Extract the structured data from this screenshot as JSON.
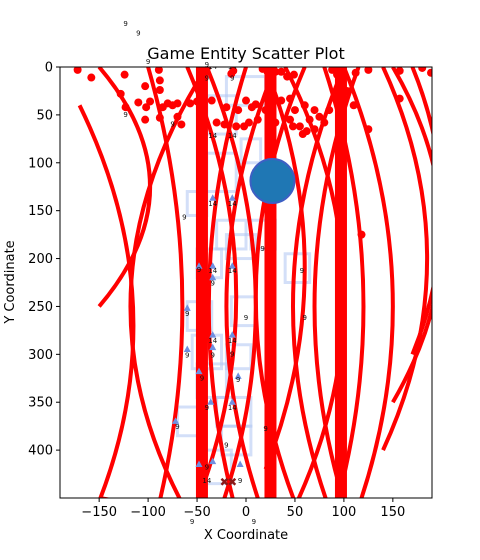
{
  "chart_data": {
    "type": "scatter",
    "title": "Game Entity Scatter Plot",
    "xlabel": "X Coordinate",
    "ylabel": "Y Coordinate",
    "xlim": [
      -190,
      190
    ],
    "ylim": [
      450,
      0
    ],
    "x_ticks": [
      -150,
      -100,
      -50,
      0,
      50,
      100,
      150
    ],
    "y_ticks": [
      0,
      50,
      100,
      150,
      200,
      250,
      300,
      350,
      400
    ],
    "grid": false,
    "colors": {
      "red": "#ff0000",
      "blue_fill": "#1f77b4",
      "blue_edge": "#3d5fc4",
      "light_blue": "#aec4f2",
      "dark_marker": "#8b1a1a"
    },
    "vertical_bars": [
      {
        "x": -45
      },
      {
        "x": 25
      },
      {
        "x": 97
      }
    ],
    "red_points": [
      {
        "x": -172,
        "y": 3
      },
      {
        "x": -158,
        "y": 11
      },
      {
        "x": -124,
        "y": 8
      },
      {
        "x": -128,
        "y": 28
      },
      {
        "x": -123,
        "y": 42
      },
      {
        "x": -110,
        "y": 37
      },
      {
        "x": -103,
        "y": 20
      },
      {
        "x": -102,
        "y": 42
      },
      {
        "x": -98,
        "y": 36
      },
      {
        "x": -89,
        "y": 3
      },
      {
        "x": -88,
        "y": 14
      },
      {
        "x": -88,
        "y": 24
      },
      {
        "x": -85,
        "y": 42
      },
      {
        "x": -80,
        "y": 38
      },
      {
        "x": -75,
        "y": 40
      },
      {
        "x": -70,
        "y": 38
      },
      {
        "x": -66,
        "y": 60
      },
      {
        "x": -57,
        "y": 38
      },
      {
        "x": -50,
        "y": 36
      },
      {
        "x": -47,
        "y": 2
      },
      {
        "x": -40,
        "y": 1
      },
      {
        "x": -35,
        "y": 35
      },
      {
        "x": -30,
        "y": 58
      },
      {
        "x": -22,
        "y": 60
      },
      {
        "x": -15,
        "y": 7
      },
      {
        "x": -13,
        "y": 4
      },
      {
        "x": -10,
        "y": 62
      },
      {
        "x": -2,
        "y": 62
      },
      {
        "x": 3,
        "y": 58
      },
      {
        "x": -103,
        "y": 55
      },
      {
        "x": -88,
        "y": 53
      },
      {
        "x": -70,
        "y": 52
      },
      {
        "x": -8,
        "y": 45
      },
      {
        "x": 0,
        "y": 35
      },
      {
        "x": 6,
        "y": 42
      },
      {
        "x": 10,
        "y": 39
      },
      {
        "x": 12,
        "y": 55
      },
      {
        "x": 17,
        "y": 2
      },
      {
        "x": 22,
        "y": 5
      },
      {
        "x": 27,
        "y": 2
      },
      {
        "x": 30,
        "y": 5
      },
      {
        "x": 36,
        "y": 5
      },
      {
        "x": 36,
        "y": 35
      },
      {
        "x": 42,
        "y": 10
      },
      {
        "x": 45,
        "y": 33
      },
      {
        "x": 49,
        "y": 8
      },
      {
        "x": 50,
        "y": 45
      },
      {
        "x": 45,
        "y": 55
      },
      {
        "x": 48,
        "y": 62
      },
      {
        "x": 55,
        "y": 62
      },
      {
        "x": 58,
        "y": 70
      },
      {
        "x": 62,
        "y": 67
      },
      {
        "x": 65,
        "y": 55
      },
      {
        "x": 60,
        "y": 40
      },
      {
        "x": 70,
        "y": 65
      },
      {
        "x": 75,
        "y": 52
      },
      {
        "x": 80,
        "y": 58
      },
      {
        "x": 85,
        "y": 45
      },
      {
        "x": 88,
        "y": 3
      },
      {
        "x": 93,
        "y": 8
      },
      {
        "x": 97,
        "y": 13
      },
      {
        "x": 103,
        "y": 25
      },
      {
        "x": 112,
        "y": 6
      },
      {
        "x": 125,
        "y": 3
      },
      {
        "x": 125,
        "y": 65
      },
      {
        "x": 110,
        "y": 40
      },
      {
        "x": 118,
        "y": 175
      },
      {
        "x": 157,
        "y": 4
      },
      {
        "x": 157,
        "y": 33
      },
      {
        "x": 180,
        "y": 1
      },
      {
        "x": 189,
        "y": 6
      },
      {
        "x": 20,
        "y": 45
      },
      {
        "x": 70,
        "y": 45
      },
      {
        "x": 30,
        "y": 58
      },
      {
        "x": -20,
        "y": 42
      }
    ],
    "big_circle": {
      "x": 27,
      "y": 119,
      "r": 22
    },
    "triangles": [
      {
        "x": -34,
        "y": 137
      },
      {
        "x": -14,
        "y": 137
      },
      {
        "x": -34,
        "y": 208
      },
      {
        "x": -14,
        "y": 208
      },
      {
        "x": -48,
        "y": 208
      },
      {
        "x": -34,
        "y": 220
      },
      {
        "x": -60,
        "y": 252
      },
      {
        "x": -34,
        "y": 280
      },
      {
        "x": -14,
        "y": 280
      },
      {
        "x": -34,
        "y": 293
      },
      {
        "x": -60,
        "y": 295
      },
      {
        "x": -48,
        "y": 318
      },
      {
        "x": -8,
        "y": 323
      },
      {
        "x": -36,
        "y": 350
      },
      {
        "x": -14,
        "y": 350
      },
      {
        "x": -72,
        "y": 370
      },
      {
        "x": -48,
        "y": 415
      },
      {
        "x": -34,
        "y": 412
      },
      {
        "x": -6,
        "y": 415
      }
    ],
    "dark_markers": [
      {
        "x": -22,
        "y": 433
      },
      {
        "x": -14,
        "y": 433
      }
    ],
    "small_labels": [
      {
        "x": -123,
        "y": -45,
        "text": "9"
      },
      {
        "x": -110,
        "y": -35,
        "text": "9"
      },
      {
        "x": -100,
        "y": -5,
        "text": "9"
      },
      {
        "x": -123,
        "y": 50,
        "text": "9"
      },
      {
        "x": -75,
        "y": 60,
        "text": "9"
      },
      {
        "x": -40,
        "y": -2,
        "text": "9"
      },
      {
        "x": -34,
        "y": 0,
        "text": "14"
      },
      {
        "x": -14,
        "y": 0,
        "text": "14"
      },
      {
        "x": -40,
        "y": 12,
        "text": "9"
      },
      {
        "x": -14,
        "y": 12,
        "text": "9"
      },
      {
        "x": -34,
        "y": 72,
        "text": "14"
      },
      {
        "x": -14,
        "y": 72,
        "text": "14"
      },
      {
        "x": -34,
        "y": 143,
        "text": "14"
      },
      {
        "x": -14,
        "y": 143,
        "text": "14"
      },
      {
        "x": -63,
        "y": 157,
        "text": "9"
      },
      {
        "x": -48,
        "y": 212,
        "text": "9"
      },
      {
        "x": -34,
        "y": 213,
        "text": "14"
      },
      {
        "x": -14,
        "y": 213,
        "text": "14"
      },
      {
        "x": -34,
        "y": 226,
        "text": "9"
      },
      {
        "x": -60,
        "y": 258,
        "text": "9"
      },
      {
        "x": 0,
        "y": 262,
        "text": "9"
      },
      {
        "x": 17,
        "y": 190,
        "text": "9"
      },
      {
        "x": 60,
        "y": 262,
        "text": "9"
      },
      {
        "x": 57,
        "y": 213,
        "text": "9"
      },
      {
        "x": -34,
        "y": 286,
        "text": "14"
      },
      {
        "x": -14,
        "y": 286,
        "text": "14"
      },
      {
        "x": -60,
        "y": 301,
        "text": "9"
      },
      {
        "x": -34,
        "y": 301,
        "text": "9"
      },
      {
        "x": -14,
        "y": 300,
        "text": "9"
      },
      {
        "x": -45,
        "y": 325,
        "text": "9"
      },
      {
        "x": -8,
        "y": 327,
        "text": "9"
      },
      {
        "x": -40,
        "y": 356,
        "text": "9"
      },
      {
        "x": -14,
        "y": 356,
        "text": "14"
      },
      {
        "x": -70,
        "y": 376,
        "text": "9"
      },
      {
        "x": 20,
        "y": 378,
        "text": "9"
      },
      {
        "x": -20,
        "y": 395,
        "text": "9"
      },
      {
        "x": -40,
        "y": 418,
        "text": "9"
      },
      {
        "x": -40,
        "y": 432,
        "text": "14"
      },
      {
        "x": -6,
        "y": 432,
        "text": "9"
      },
      {
        "x": -55,
        "y": 475,
        "text": "9"
      },
      {
        "x": 8,
        "y": 475,
        "text": "9"
      }
    ]
  }
}
